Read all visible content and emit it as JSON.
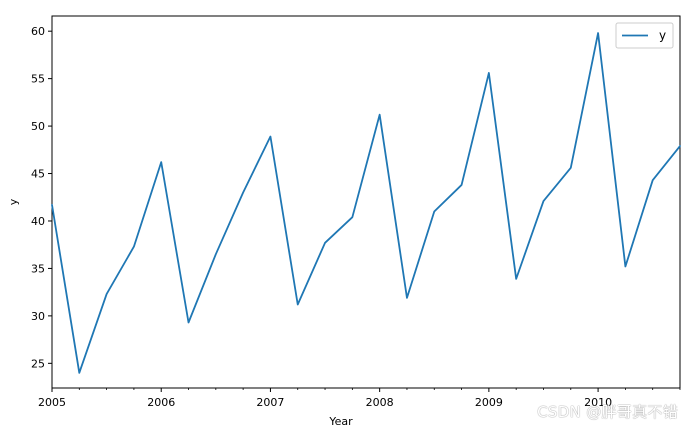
{
  "chart_data": {
    "type": "line",
    "title": "",
    "xlabel": "Year",
    "ylabel": "y",
    "x_tick_labels": [
      "2005",
      "2006",
      "2007",
      "2008",
      "2009",
      "2010"
    ],
    "y_ticks": [
      25,
      30,
      35,
      40,
      45,
      50,
      55,
      60
    ],
    "xlim": [
      2005.0,
      2010.75
    ],
    "ylim": [
      22.4,
      61.6
    ],
    "grid": false,
    "legend_position": "top-right",
    "x": [
      2005.0,
      2005.25,
      2005.5,
      2005.75,
      2006.0,
      2006.25,
      2006.5,
      2006.75,
      2007.0,
      2007.25,
      2007.5,
      2007.75,
      2008.0,
      2008.25,
      2008.5,
      2008.75,
      2009.0,
      2009.25,
      2009.5,
      2009.75,
      2010.0,
      2010.25,
      2010.5,
      2010.75
    ],
    "series": [
      {
        "name": "y",
        "color": "#1f77b4",
        "values": [
          41.7,
          24.0,
          32.3,
          37.3,
          46.2,
          29.3,
          36.5,
          43.0,
          48.9,
          31.2,
          37.7,
          40.4,
          51.2,
          31.9,
          41.0,
          43.8,
          55.6,
          33.9,
          42.1,
          45.6,
          59.8,
          35.2,
          44.3,
          47.9
        ]
      }
    ]
  },
  "watermark": "CSDN @胖哥真不错"
}
